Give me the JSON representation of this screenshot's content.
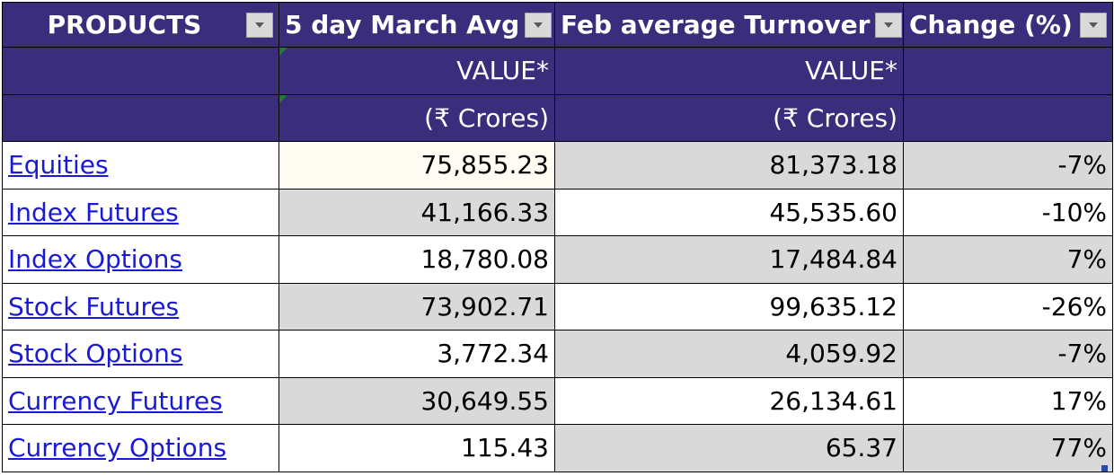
{
  "header": {
    "products": "PRODUCTS",
    "col1": "5 day March Avg",
    "col2": "Feb average Turnover",
    "col3": "Change (%)"
  },
  "sub1": {
    "col1": "VALUE*",
    "col2": "VALUE*"
  },
  "sub2": {
    "col1": "(₹ Crores)",
    "col2": "(₹ Crores)"
  },
  "rows": [
    {
      "product": "Equities",
      "march": "75,855.23",
      "feb": "81,373.18",
      "change": "-7%"
    },
    {
      "product": "Index Futures",
      "march": "41,166.33",
      "feb": "45,535.60",
      "change": "-10%"
    },
    {
      "product": "Index Options",
      "march": "18,780.08",
      "feb": "17,484.84",
      "change": "7%"
    },
    {
      "product": "Stock Futures",
      "march": "73,902.71",
      "feb": "99,635.12",
      "change": "-26%"
    },
    {
      "product": "Stock Options",
      "march": "3,772.34",
      "feb": "4,059.92",
      "change": "-7%"
    },
    {
      "product": "Currency Futures",
      "march": "30,649.55",
      "feb": "26,134.61",
      "change": "17%"
    },
    {
      "product": "Currency Options",
      "march": "115.43",
      "feb": "65.37",
      "change": "77%"
    }
  ],
  "colors": {
    "header_bg": "#3a2d7b",
    "gray_cell": "#d9d9d9",
    "link": "#1a1ad6"
  }
}
